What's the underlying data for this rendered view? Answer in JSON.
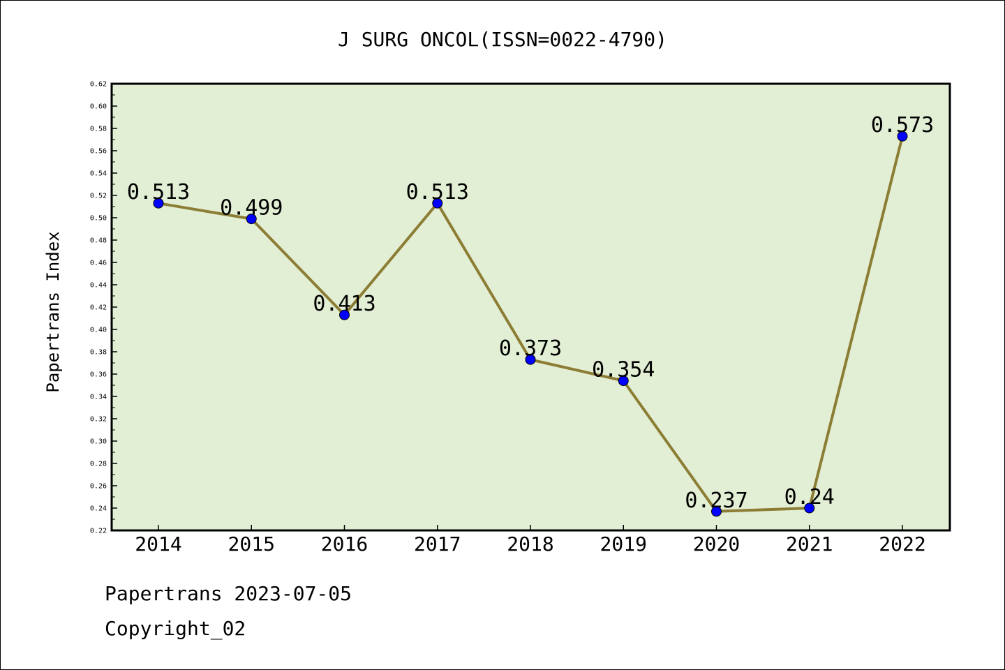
{
  "chart_data": {
    "type": "line",
    "title": "J SURG ONCOL(ISSN=0022-4790)",
    "xlabel": "",
    "ylabel": "Papertrans Index",
    "categories": [
      "2014",
      "2015",
      "2016",
      "2017",
      "2018",
      "2019",
      "2020",
      "2021",
      "2022"
    ],
    "values": [
      0.513,
      0.499,
      0.413,
      0.513,
      0.373,
      0.354,
      0.237,
      0.24,
      0.573
    ],
    "data_labels": [
      "0.513",
      "0.499",
      "0.413",
      "0.513",
      "0.373",
      "0.354",
      "0.237",
      "0.24",
      "0.573"
    ],
    "ylim": [
      0.22,
      0.62
    ],
    "yticks": [
      "0.22",
      "0.24",
      "0.26",
      "0.28",
      "0.30",
      "0.32",
      "0.34",
      "0.36",
      "0.38",
      "0.40",
      "0.42",
      "0.44",
      "0.46",
      "0.48",
      "0.50",
      "0.52",
      "0.54",
      "0.56",
      "0.58",
      "0.60",
      "0.62"
    ],
    "grid": false,
    "legend": "none",
    "colors": {
      "plot_background": "#e2efd5",
      "line": "#8c7d35",
      "marker": "#0000ff",
      "axis": "#000000"
    }
  },
  "footer": {
    "line1": "Papertrans 2023-07-05",
    "line2": "Copyright_02"
  }
}
